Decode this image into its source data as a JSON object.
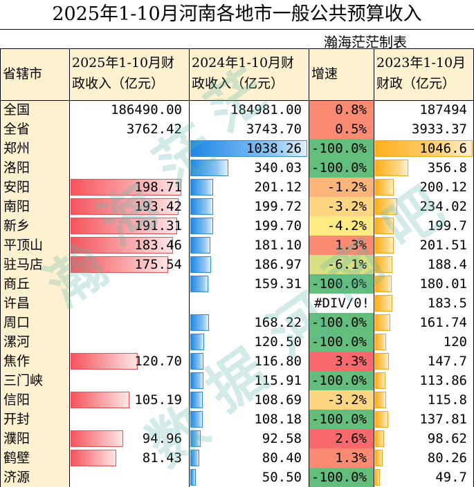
{
  "title": "2025年1-10月河南各地市一般公共预算收入",
  "note": "瀚海茫茫制表",
  "watermark": [
    "瀚",
    "海",
    "茫",
    "茫",
    "数",
    "据",
    "河",
    "南",
    "吧"
  ],
  "headers": {
    "city": "省辖市",
    "rev2025": [
      "2025年1-10月财",
      "政收入（亿元）"
    ],
    "rev2024": [
      "2024年1-10月财",
      "政收入（亿元）"
    ],
    "growth": "增速",
    "rev2023": [
      "2023年1-10月",
      "财政（亿元）"
    ]
  },
  "colors": {
    "header_bg": "#fdf1cf",
    "city_bg": "#fdf1cf",
    "red_bar": "#f5545b",
    "blue_bar": "#1e88e5",
    "orange_bar": "#ffae1a",
    "growth_red": "#f8696b",
    "growth_yellow": "#ffeb84",
    "growth_green": "#63be7b"
  },
  "chart_data": {
    "type": "table",
    "bar_max": {
      "rev2025": 210,
      "rev2024": 1038.26,
      "rev2023": 1046.6
    },
    "rows": [
      {
        "city": "全国",
        "rev2025": "186490.00",
        "rev2024": "184981.00",
        "growth": "0.8%",
        "growth_value": 0.8,
        "rev2023": "187494",
        "bar": false
      },
      {
        "city": "全省",
        "rev2025": "3762.42",
        "rev2024": "3743.70",
        "growth": "0.5%",
        "growth_value": 0.5,
        "rev2023": "3933.37",
        "bar": false
      },
      {
        "city": "郑州",
        "rev2025": "",
        "rev2024": "1038.26",
        "growth": "-100.0%",
        "growth_value": -100,
        "rev2023": "1046.6",
        "bar": true
      },
      {
        "city": "洛阳",
        "rev2025": "",
        "rev2024": "340.03",
        "growth": "-100.0%",
        "growth_value": -100,
        "rev2023": "356.8",
        "bar": true
      },
      {
        "city": "安阳",
        "rev2025": "198.71",
        "rev2024": "201.12",
        "growth": "-1.2%",
        "growth_value": -1.2,
        "rev2023": "200.12",
        "bar": true
      },
      {
        "city": "南阳",
        "rev2025": "193.42",
        "rev2024": "199.72",
        "growth": "-3.2%",
        "growth_value": -3.2,
        "rev2023": "234.02",
        "bar": true
      },
      {
        "city": "新乡",
        "rev2025": "191.31",
        "rev2024": "199.70",
        "growth": "-4.2%",
        "growth_value": -4.2,
        "rev2023": "199.7",
        "bar": true
      },
      {
        "city": "平顶山",
        "rev2025": "183.46",
        "rev2024": "181.10",
        "growth": "1.3%",
        "growth_value": 1.3,
        "rev2023": "201.51",
        "bar": true
      },
      {
        "city": "驻马店",
        "rev2025": "175.54",
        "rev2024": "186.97",
        "growth": "-6.1%",
        "growth_value": -6.1,
        "rev2023": "188.4",
        "bar": true
      },
      {
        "city": "商丘",
        "rev2025": "",
        "rev2024": "159.31",
        "growth": "-100.0%",
        "growth_value": -100,
        "rev2023": "180.01",
        "bar": true
      },
      {
        "city": "许昌",
        "rev2025": "",
        "rev2024": "",
        "growth": "#DIV/0!",
        "growth_value": null,
        "rev2023": "183.5",
        "bar": true
      },
      {
        "city": "周口",
        "rev2025": "",
        "rev2024": "168.22",
        "growth": "-100.0%",
        "growth_value": -100,
        "rev2023": "161.74",
        "bar": true
      },
      {
        "city": "漯河",
        "rev2025": "",
        "rev2024": "120.50",
        "growth": "-100.0%",
        "growth_value": -100,
        "rev2023": "120",
        "bar": true
      },
      {
        "city": "焦作",
        "rev2025": "120.70",
        "rev2024": "116.80",
        "growth": "3.3%",
        "growth_value": 3.3,
        "rev2023": "147.7",
        "bar": true
      },
      {
        "city": "三门峡",
        "rev2025": "",
        "rev2024": "115.91",
        "growth": "-100.0%",
        "growth_value": -100,
        "rev2023": "113.86",
        "bar": true
      },
      {
        "city": "信阳",
        "rev2025": "105.19",
        "rev2024": "108.69",
        "growth": "-3.2%",
        "growth_value": -3.2,
        "rev2023": "115.8",
        "bar": true
      },
      {
        "city": "开封",
        "rev2025": "",
        "rev2024": "108.18",
        "growth": "-100.0%",
        "growth_value": -100,
        "rev2023": "137.81",
        "bar": true
      },
      {
        "city": "濮阳",
        "rev2025": "94.96",
        "rev2024": "92.58",
        "growth": "2.6%",
        "growth_value": 2.6,
        "rev2023": "98.62",
        "bar": true
      },
      {
        "city": "鹤壁",
        "rev2025": "81.43",
        "rev2024": "80.40",
        "growth": "1.3%",
        "growth_value": 1.3,
        "rev2023": "80.26",
        "bar": true
      },
      {
        "city": "济源",
        "rev2025": "",
        "rev2024": "50.50",
        "growth": "-100.0%",
        "growth_value": -100,
        "rev2023": "49.7",
        "bar": true
      }
    ]
  }
}
